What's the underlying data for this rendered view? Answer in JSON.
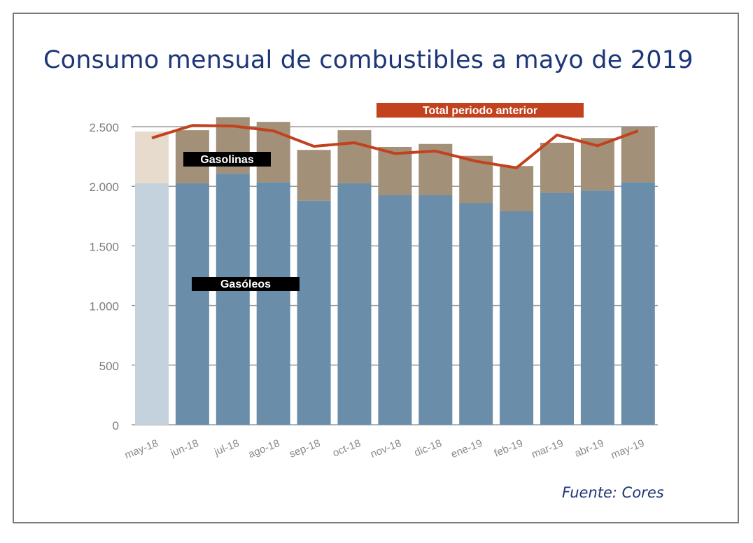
{
  "chart_data": {
    "type": "bar",
    "stacked": true,
    "title": "Consumo mensual de combustibles a mayo de 2019",
    "source": "Fuente: Cores",
    "categories": [
      "may-18",
      "jun-18",
      "jul-18",
      "ago-18",
      "sep-18",
      "oct-18",
      "nov-18",
      "dic-18",
      "ene-19",
      "feb-19",
      "mar-19",
      "abr-19",
      "may-19"
    ],
    "series": [
      {
        "name": "Gasóleos",
        "type": "bar",
        "color": "#6a8daa",
        "highlight_first_color": "#c3d2dd",
        "values": [
          2025,
          2025,
          2105,
          2035,
          1880,
          2025,
          1925,
          1925,
          1860,
          1790,
          1945,
          1965,
          2035
        ]
      },
      {
        "name": "Gasolinas",
        "type": "bar",
        "color": "#a39079",
        "highlight_first_color": "#e6dbcd",
        "values": [
          435,
          445,
          475,
          505,
          425,
          445,
          405,
          430,
          395,
          380,
          420,
          440,
          465
        ]
      },
      {
        "name": "Total periodo anterior",
        "type": "line",
        "color": "#c2421f",
        "values": [
          2405,
          2510,
          2505,
          2465,
          2335,
          2365,
          2275,
          2295,
          2210,
          2155,
          2430,
          2340,
          2465
        ]
      }
    ],
    "yticks": [
      0,
      500,
      1000,
      1500,
      2000,
      2500
    ],
    "ytick_labels": [
      "0",
      "500",
      "1.000",
      "1.500",
      "2.000",
      "2.500"
    ],
    "ylim": [
      0,
      2500
    ],
    "grid": true,
    "legend": "inline labels"
  }
}
